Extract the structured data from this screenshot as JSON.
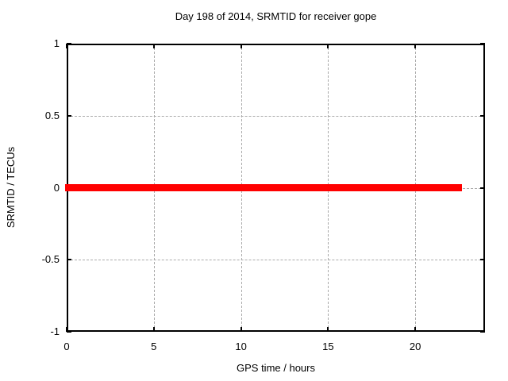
{
  "figure": {
    "background": "#ffffff",
    "text_color": "#000000"
  },
  "chart_data": {
    "type": "line",
    "title": "Day 198 of 2014, SRMTID for receiver gope",
    "xlabel": "GPS time / hours",
    "ylabel": "SRMTID / TECUs",
    "xlim": [
      0,
      24
    ],
    "ylim": [
      -1,
      1
    ],
    "xticks": [
      0,
      5,
      10,
      15,
      20
    ],
    "yticks": [
      -1,
      -0.5,
      0,
      0.5,
      1
    ],
    "grid": true,
    "grid_color": "#aaaaaa",
    "border_color": "#000000",
    "legend": "none",
    "series": [
      {
        "name": "SRMTID",
        "color": "#ff0000",
        "line_width": 9,
        "points": [
          [
            0,
            0
          ],
          [
            22.7,
            0
          ]
        ]
      }
    ]
  }
}
